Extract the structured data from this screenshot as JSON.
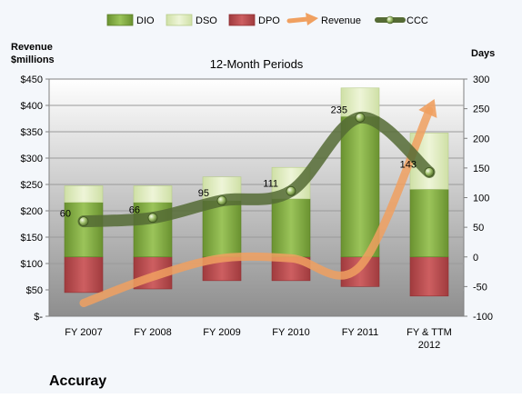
{
  "company": "Accuray",
  "chart_data": {
    "type": "bar",
    "subtitle": "12-Month Periods",
    "categories": [
      "FY 2007",
      "FY 2008",
      "FY 2009",
      "FY 2010",
      "FY 2011",
      "FY & TTM\n2012"
    ],
    "ylabel_left": "Revenue\n$millions",
    "ylabel_right": "Days",
    "ylim_left": [
      0,
      450
    ],
    "yticks_left": [
      "$-",
      "$50",
      "$100",
      "$150",
      "$200",
      "$250",
      "$300",
      "$350",
      "$400",
      "$450"
    ],
    "ylim_right": [
      -100,
      300
    ],
    "yticks_right": [
      "-100",
      "-50",
      "0",
      "50",
      "100",
      "150",
      "200",
      "250",
      "300"
    ],
    "series": [
      {
        "name": "DIO",
        "color": "#7aa23c",
        "values": [
          92,
          92,
          95,
          98,
          237,
          114
        ]
      },
      {
        "name": "DSO",
        "color": "#dbe8b8",
        "values": [
          28,
          28,
          40,
          53,
          48,
          95
        ]
      },
      {
        "name": "DPO",
        "color": "#b8484b",
        "values": [
          -60,
          -54,
          -40,
          -40,
          -50,
          -66
        ]
      },
      {
        "name": "Revenue",
        "color": "#f0a060",
        "values": [
          25,
          75,
          110,
          110,
          95,
          390
        ]
      },
      {
        "name": "CCC",
        "color": "#556b35",
        "values": [
          60,
          66,
          95,
          111,
          235,
          143
        ],
        "labels": [
          "60",
          "66",
          "95",
          "111",
          "235",
          "143"
        ]
      }
    ],
    "grid": true,
    "legend": "top"
  }
}
